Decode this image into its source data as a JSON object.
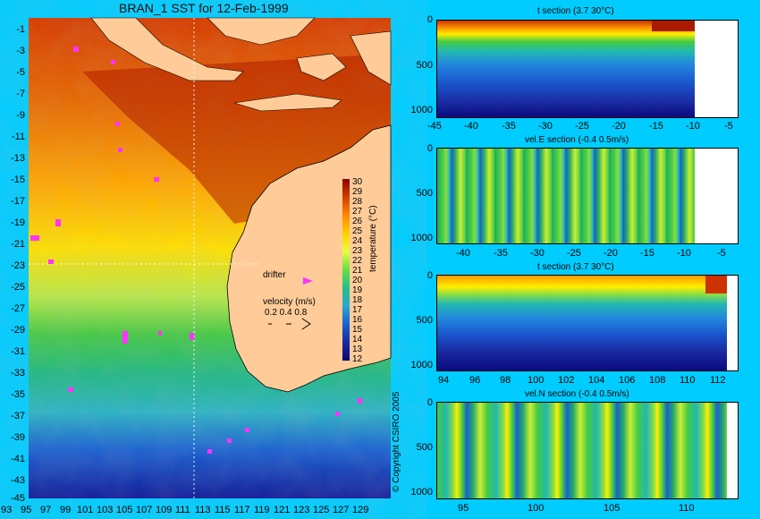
{
  "main_title": "BRAN_1 SST for 12-Feb-1999",
  "map": {
    "lat_ticks": [
      "-1",
      "-3",
      "-5",
      "-7",
      "-9",
      "-11",
      "-13",
      "-15",
      "-17",
      "-19",
      "-21",
      "-23",
      "-25",
      "-27",
      "-29",
      "-31",
      "-33",
      "-35",
      "-37",
      "-39",
      "-41",
      "-43",
      "-45"
    ],
    "lon_ticks": [
      "93",
      "95",
      "97",
      "99",
      "101",
      "103",
      "105",
      "107",
      "109",
      "111",
      "113",
      "115",
      "117",
      "119",
      "121",
      "123",
      "125",
      "127",
      "129"
    ],
    "colorbar_ticks": [
      "30",
      "29",
      "28",
      "27",
      "26",
      "25",
      "24",
      "23",
      "22",
      "21",
      "20",
      "19",
      "18",
      "17",
      "16",
      "15",
      "14",
      "13",
      "12"
    ],
    "colorbar_label": "temperature (°C)",
    "drifter_label": "drifter",
    "velocity_label": "velocity (m/s)",
    "velocity_scale": "0.2 0.4 0.8"
  },
  "copyright": "© Copyright CSIRO 2005",
  "sections": [
    {
      "title": "t section (3.7      30°C)",
      "y_ticks": [
        "0",
        "500",
        "1000"
      ],
      "x_ticks": [
        "-45",
        "-40",
        "-35",
        "-30",
        "-25",
        "-20",
        "-15",
        "-10",
        "-5"
      ]
    },
    {
      "title": "vel.E section (-0.4      0.5m/s)",
      "y_ticks": [
        "0",
        "500",
        "1000"
      ],
      "x_ticks": [
        "-40",
        "-35",
        "-30",
        "-25",
        "-20",
        "-15",
        "-10",
        "-5"
      ]
    },
    {
      "title": "t section (3.7      30°C)",
      "y_ticks": [
        "0",
        "500",
        "1000"
      ],
      "x_ticks": [
        "94",
        "96",
        "98",
        "100",
        "102",
        "104",
        "106",
        "108",
        "110",
        "112"
      ]
    },
    {
      "title": "vel.N section (-0.4      0.5m/s)",
      "y_ticks": [
        "0",
        "500",
        "1000"
      ],
      "x_ticks": [
        "95",
        "100",
        "105",
        "110"
      ]
    }
  ],
  "colors": {
    "background": "#00ccff",
    "land": "#ffcc99",
    "drifter": "#ff33ff"
  }
}
